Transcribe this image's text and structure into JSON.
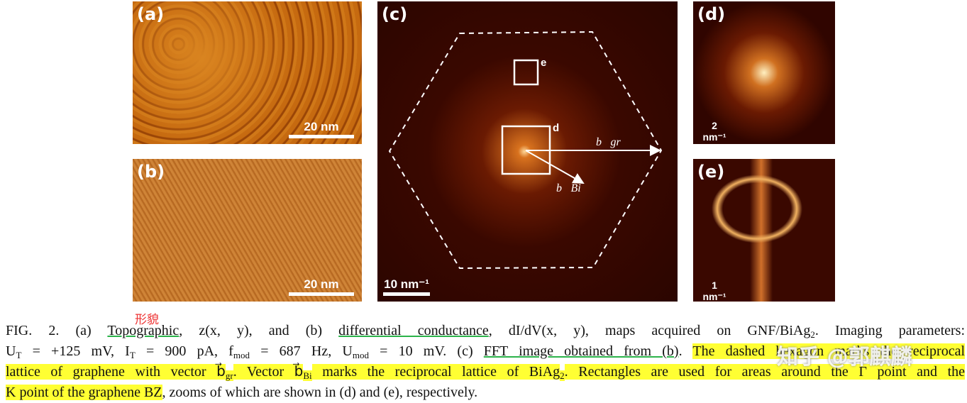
{
  "panels": [
    {
      "label": "(a)",
      "scale_bar": "20 nm"
    },
    {
      "label": "(b)",
      "scale_bar": "20 nm"
    },
    {
      "label": "(c)",
      "scale_bar": "10 nm⁻¹",
      "box_labels": [
        "e",
        "d"
      ],
      "vectors": [
        "b⃗gr",
        "b⃗Bi"
      ]
    },
    {
      "label": "(d)",
      "scale_bar": "2 nm⁻¹"
    },
    {
      "label": "(e)",
      "scale_bar": "1 nm⁻¹"
    }
  ],
  "annotation": "形貌",
  "watermark": "知乎 @郭麒麟",
  "caption": {
    "lines": [
      [
        {
          "text": "FIG. 2. (a) "
        },
        {
          "text": "Topographic",
          "s": "ul"
        },
        {
          "text": ", z(x, y), and (b) "
        },
        {
          "text": "differential conductance",
          "s": "ul"
        },
        {
          "text": ", dI/dV(x, y), maps acquired on GNF/BiAg"
        },
        {
          "text": "2",
          "s": "sub"
        },
        {
          "text": ". Imaging parameters:"
        }
      ],
      [
        {
          "text": "U"
        },
        {
          "text": "T",
          "s": "sub"
        },
        {
          "text": " = +125 mV, I"
        },
        {
          "text": "T",
          "s": "sub"
        },
        {
          "text": " = 900 pA, f"
        },
        {
          "text": "mod",
          "s": "sub"
        },
        {
          "text": " = 687 Hz, U"
        },
        {
          "text": "mod",
          "s": "sub"
        },
        {
          "text": " = 10 mV. (c) "
        },
        {
          "text": "FFT image obtained from (b)",
          "s": "ul"
        },
        {
          "text": ". "
        },
        {
          "text": "The dashed hexagon marks the reciprocal",
          "s": "hl"
        }
      ],
      [
        {
          "text": "lattice of graphene with vector b⃗",
          "s": "hl"
        },
        {
          "text": "gr",
          "s": "hl-sub"
        },
        {
          "text": ". Vector b⃗",
          "s": "hl"
        },
        {
          "text": "Bi",
          "s": "hl-sub"
        },
        {
          "text": " marks the reciprocal lattice of BiAg",
          "s": "hl"
        },
        {
          "text": "2",
          "s": "hl-sub"
        },
        {
          "text": ". Rectangles are used for areas around the Γ point and the",
          "s": "hl"
        }
      ],
      [
        {
          "text": "K point of the graphene BZ",
          "s": "hl"
        },
        {
          "text": ", zooms of which are shown in (d) and (e), respectively."
        }
      ]
    ]
  }
}
